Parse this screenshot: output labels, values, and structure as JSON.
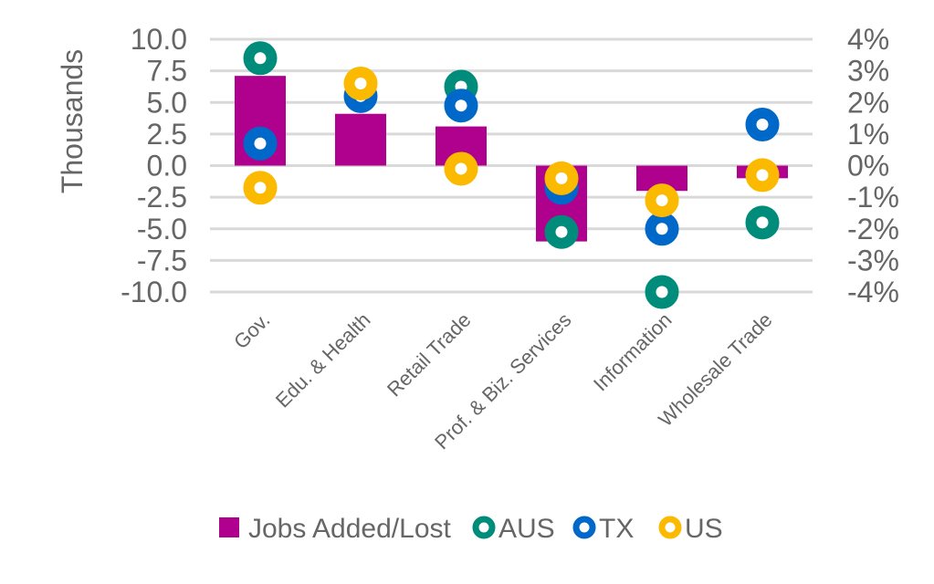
{
  "chart_data": {
    "type": "bar",
    "title": "",
    "ylabel": "Thousands",
    "y2label": "",
    "ylim": [
      -10,
      10
    ],
    "y2lim": [
      -4,
      4
    ],
    "yticks": [
      "10.0",
      "7.5",
      "5.0",
      "2.5",
      "0.0",
      "-2.5",
      "-5.0",
      "-7.5",
      "-10.0"
    ],
    "y2ticks": [
      "4%",
      "3%",
      "2%",
      "1%",
      "0%",
      "-1%",
      "-2%",
      "-3%",
      "-4%"
    ],
    "grid": true,
    "legend_position": "bottom",
    "categories": [
      "Gov.",
      "Edu. & Health",
      "Retail Trade",
      "Prof. & Biz. Services",
      "Information",
      "Wholesale Trade"
    ],
    "bar_series": {
      "name": "Jobs Added/Lost",
      "axis": "left",
      "color": "#b0008e",
      "values": [
        7.1,
        4.1,
        3.1,
        -6.0,
        -2.0,
        -1.0
      ]
    },
    "point_series": [
      {
        "name": "AUS",
        "axis": "right",
        "unit": "%",
        "color": "#008c7a",
        "values": [
          3.4,
          null,
          2.5,
          -2.1,
          -4.0,
          -1.8
        ]
      },
      {
        "name": "TX",
        "axis": "right",
        "unit": "%",
        "color": "#0068c9",
        "values": [
          0.7,
          2.2,
          1.9,
          -0.7,
          -2.0,
          1.3
        ]
      },
      {
        "name": "US",
        "axis": "right",
        "unit": "%",
        "color": "#fbb900",
        "values": [
          -0.7,
          2.6,
          -0.1,
          -0.4,
          -1.1,
          -0.3
        ]
      }
    ]
  }
}
